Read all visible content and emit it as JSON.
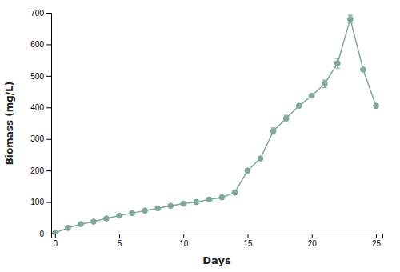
{
  "chart_data": {
    "type": "line",
    "xlabel": "Days",
    "ylabel": "Biomass (mg/L)",
    "x": [
      0,
      1,
      2,
      3,
      4,
      5,
      6,
      7,
      8,
      9,
      10,
      11,
      12,
      13,
      14,
      15,
      16,
      17,
      18,
      19,
      20,
      21,
      22,
      23,
      24,
      25
    ],
    "values": [
      2,
      18,
      30,
      38,
      48,
      57,
      65,
      73,
      80,
      88,
      95,
      100,
      108,
      115,
      130,
      200,
      238,
      325,
      365,
      405,
      437,
      475,
      540,
      680,
      520,
      405
    ],
    "errors": [
      0,
      0,
      0,
      0,
      0,
      0,
      0,
      0,
      0,
      0,
      0,
      0,
      0,
      0,
      0,
      0,
      0,
      10,
      10,
      0,
      0,
      12,
      15,
      12,
      0,
      0
    ],
    "color": "#7fa898",
    "marker": "circle",
    "line_style": "solid",
    "xlim": [
      -0.3,
      25.5
    ],
    "ylim": [
      0,
      700
    ],
    "xticks": [
      0,
      5,
      10,
      15,
      20,
      25
    ],
    "yticks": [
      0,
      100,
      200,
      300,
      400,
      500,
      600,
      700
    ],
    "grid": false
  }
}
